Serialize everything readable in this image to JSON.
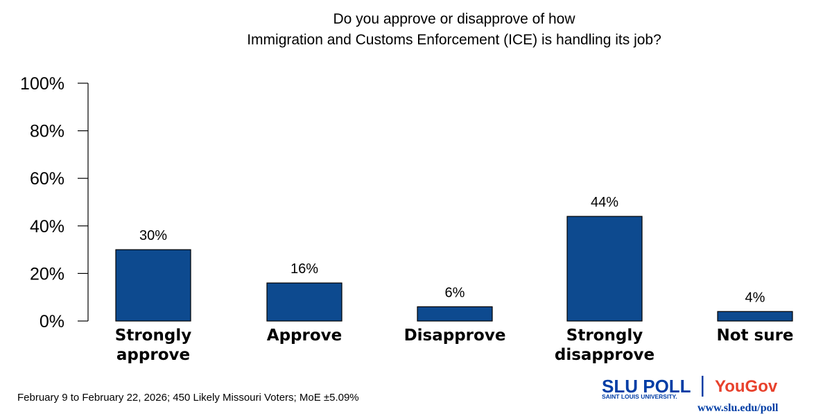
{
  "chart_data": {
    "type": "bar",
    "title_lines": [
      "Do you approve or disapprove of how",
      "Immigration and Customs Enforcement (ICE) is handling its job?"
    ],
    "categories": [
      [
        "Strongly",
        "approve"
      ],
      [
        "Approve"
      ],
      [
        "Disapprove"
      ],
      [
        "Strongly",
        "disapprove"
      ],
      [
        "Not sure"
      ]
    ],
    "values": [
      30,
      16,
      6,
      44,
      4
    ],
    "data_labels": [
      "30%",
      "16%",
      "6%",
      "44%",
      "4%"
    ],
    "ylim": [
      0,
      100
    ],
    "yticks": [
      0,
      20,
      40,
      60,
      80,
      100
    ],
    "ytick_labels": [
      "0%",
      "20%",
      "40%",
      "60%",
      "80%",
      "100%"
    ],
    "bar_color": "#0d4a8f",
    "grid": false,
    "legend": "none"
  },
  "footnote": "February 9 to February 22, 2026; 450 Likely Missouri Voters; MoE ±5.09%",
  "branding": {
    "slu_poll": "SLU POLL",
    "slu_sub": "SAINT LOUIS UNIVERSITY.",
    "yougov": "YouGov",
    "url": "www.slu.edu/poll",
    "slu_color": "#003da5",
    "yougov_color": "#e8412c",
    "divider_color": "#003da5"
  }
}
